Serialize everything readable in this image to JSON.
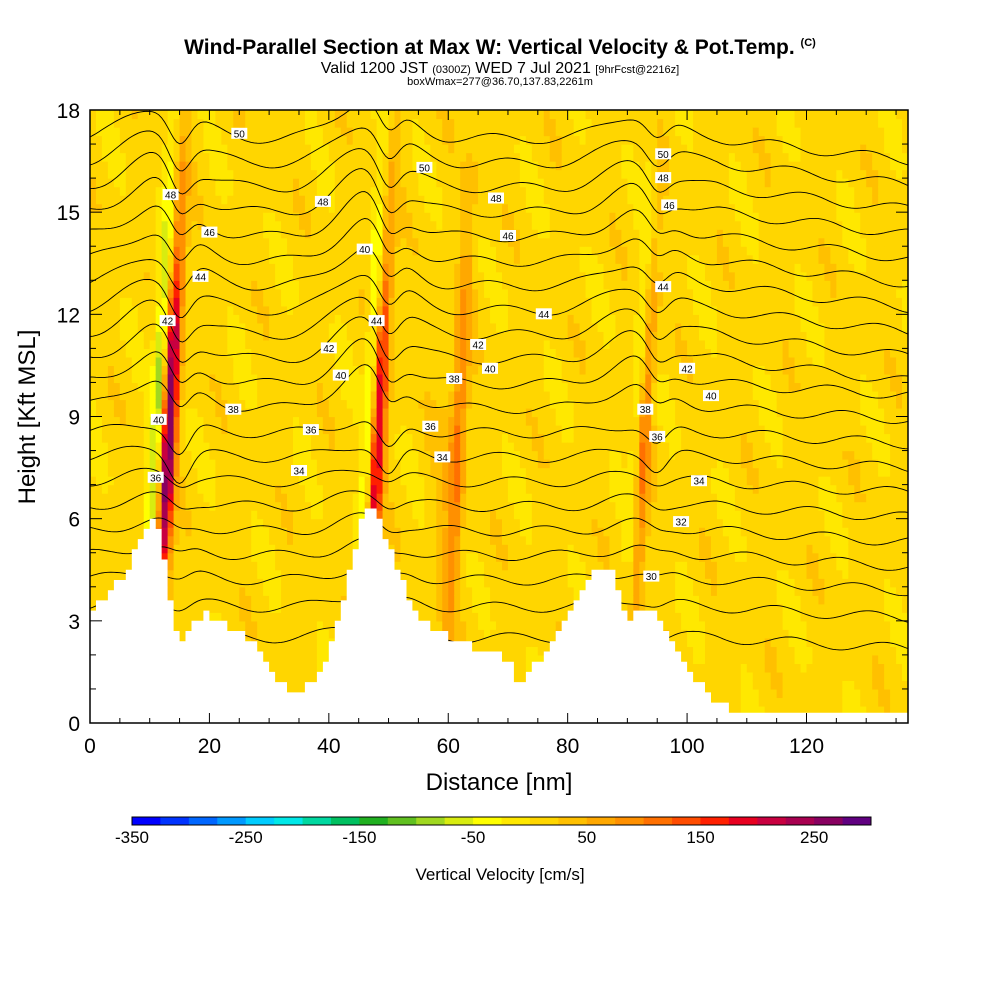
{
  "header": {
    "title": "Wind-Parallel Section at Max W: Vertical Velocity & Pot.Temp.",
    "title_mark": "(C)",
    "sub_a": "Valid 1200 JST",
    "sub_b": "(0300Z)",
    "sub_c": "WED 7 Jul 2021",
    "sub_d": "[9hrFcst@2216z]",
    "sub_line2": "boxWmax=277@36.70,137.83,2261m"
  },
  "chart_data": {
    "type": "heatmap",
    "xlabel": "Distance [nm]",
    "ylabel": "Height [Kft MSL]",
    "xlim": [
      0,
      137
    ],
    "ylim": [
      0,
      18
    ],
    "x_ticks": [
      0,
      20,
      40,
      60,
      80,
      100,
      120
    ],
    "y_ticks": [
      0,
      3,
      6,
      9,
      12,
      15,
      18
    ],
    "colorbar": {
      "title": "Vertical Velocity [cm/s]",
      "min": -350,
      "max": 300,
      "tick_values": [
        -350,
        -250,
        -150,
        -50,
        50,
        150,
        250
      ],
      "colors": [
        "#0000ff",
        "#0033ff",
        "#0066ff",
        "#0099ff",
        "#00ccff",
        "#00e8e8",
        "#00d8a0",
        "#00c060",
        "#20b020",
        "#60c020",
        "#a0d820",
        "#d8ec10",
        "#ffff00",
        "#ffe800",
        "#ffd600",
        "#ffc000",
        "#ffa800",
        "#ff9000",
        "#ff7000",
        "#ff4c00",
        "#ff2000",
        "#e80020",
        "#c80040",
        "#a80050",
        "#880060",
        "#600080"
      ]
    },
    "terrain_kft": [
      [
        0,
        3.3
      ],
      [
        3,
        3.8
      ],
      [
        6,
        4.4
      ],
      [
        8,
        5.2
      ],
      [
        10,
        6.0
      ],
      [
        12,
        5.6
      ],
      [
        13,
        4.2
      ],
      [
        14,
        3.0
      ],
      [
        15,
        2.4
      ],
      [
        17,
        2.8
      ],
      [
        19,
        3.2
      ],
      [
        21,
        3.0
      ],
      [
        23,
        2.9
      ],
      [
        25,
        2.6
      ],
      [
        27,
        2.4
      ],
      [
        29,
        2.0
      ],
      [
        31,
        1.4
      ],
      [
        33,
        1.0
      ],
      [
        35,
        1.0
      ],
      [
        37,
        1.1
      ],
      [
        39,
        1.6
      ],
      [
        41,
        2.6
      ],
      [
        43,
        4.0
      ],
      [
        45,
        5.6
      ],
      [
        46,
        6.2
      ],
      [
        48,
        6.2
      ],
      [
        49,
        5.6
      ],
      [
        51,
        4.8
      ],
      [
        53,
        3.8
      ],
      [
        55,
        3.2
      ],
      [
        57,
        2.8
      ],
      [
        59,
        2.6
      ],
      [
        61,
        2.4
      ],
      [
        63,
        2.3
      ],
      [
        65,
        2.2
      ],
      [
        67,
        2.2
      ],
      [
        69,
        2.0
      ],
      [
        71,
        1.6
      ],
      [
        72,
        1.0
      ],
      [
        74,
        1.6
      ],
      [
        76,
        2.0
      ],
      [
        78,
        2.6
      ],
      [
        80,
        3.3
      ],
      [
        82,
        3.8
      ],
      [
        84,
        4.2
      ],
      [
        85,
        4.6
      ],
      [
        87,
        4.6
      ],
      [
        88,
        4.2
      ],
      [
        89,
        3.6
      ],
      [
        90,
        3.0
      ],
      [
        92,
        3.2
      ],
      [
        94,
        3.3
      ],
      [
        96,
        2.8
      ],
      [
        98,
        2.2
      ],
      [
        100,
        1.6
      ],
      [
        102,
        1.2
      ],
      [
        104,
        0.8
      ],
      [
        106,
        0.5
      ],
      [
        108,
        0.3
      ],
      [
        112,
        0.3
      ],
      [
        120,
        0.3
      ],
      [
        130,
        0.3
      ],
      [
        137,
        0.3
      ]
    ],
    "updrafts_cm_s": [
      {
        "x_nm": 12.5,
        "peak": 270
      },
      {
        "x_nm": 47.5,
        "peak": 200
      },
      {
        "x_nm": 92.0,
        "peak": 110
      },
      {
        "x_nm": 61.0,
        "peak": 90
      }
    ],
    "downdrafts_cm_s": [
      {
        "x_nm": 10.5,
        "peak": -110
      },
      {
        "x_nm": 46.0,
        "peak": -90
      },
      {
        "x_nm": 91.0,
        "peak": -70
      }
    ],
    "theta_contours": {
      "levels_from": 30,
      "levels_to": 50,
      "interval": 1,
      "label_levels": [
        30,
        32,
        34,
        36,
        38,
        40,
        42,
        44,
        46,
        48,
        50
      ]
    },
    "contour_labels": [
      {
        "text": "50",
        "x": 25,
        "y": 17.3
      },
      {
        "text": "50",
        "x": 56,
        "y": 16.3
      },
      {
        "text": "50",
        "x": 96,
        "y": 16.7
      },
      {
        "text": "48",
        "x": 13.5,
        "y": 15.5
      },
      {
        "text": "48",
        "x": 39,
        "y": 15.3
      },
      {
        "text": "48",
        "x": 68,
        "y": 15.4
      },
      {
        "text": "48",
        "x": 96,
        "y": 16.0
      },
      {
        "text": "46",
        "x": 20,
        "y": 14.4
      },
      {
        "text": "46",
        "x": 70,
        "y": 14.3
      },
      {
        "text": "46",
        "x": 97,
        "y": 15.2
      },
      {
        "text": "40",
        "x": 46,
        "y": 13.9
      },
      {
        "text": "44",
        "x": 18.5,
        "y": 13.1
      },
      {
        "text": "44",
        "x": 48,
        "y": 11.8
      },
      {
        "text": "44",
        "x": 76,
        "y": 12.0
      },
      {
        "text": "44",
        "x": 96,
        "y": 12.8
      },
      {
        "text": "42",
        "x": 13,
        "y": 11.8
      },
      {
        "text": "42",
        "x": 40,
        "y": 11.0
      },
      {
        "text": "42",
        "x": 65,
        "y": 11.1
      },
      {
        "text": "42",
        "x": 100,
        "y": 10.4
      },
      {
        "text": "40",
        "x": 42,
        "y": 10.2
      },
      {
        "text": "40",
        "x": 67,
        "y": 10.4
      },
      {
        "text": "40",
        "x": 104,
        "y": 9.6
      },
      {
        "text": "38",
        "x": 24,
        "y": 9.2
      },
      {
        "text": "38",
        "x": 61,
        "y": 10.1
      },
      {
        "text": "38",
        "x": 93,
        "y": 9.2
      },
      {
        "text": "40",
        "x": 11.5,
        "y": 8.9
      },
      {
        "text": "36",
        "x": 37,
        "y": 8.6
      },
      {
        "text": "36",
        "x": 57,
        "y": 8.7
      },
      {
        "text": "36",
        "x": 95,
        "y": 8.4
      },
      {
        "text": "34",
        "x": 35,
        "y": 7.4
      },
      {
        "text": "34",
        "x": 59,
        "y": 7.8
      },
      {
        "text": "34",
        "x": 102,
        "y": 7.1
      },
      {
        "text": "36",
        "x": 11,
        "y": 7.2
      },
      {
        "text": "32",
        "x": 99,
        "y": 5.9
      },
      {
        "text": "30",
        "x": 94,
        "y": 4.3
      }
    ]
  }
}
